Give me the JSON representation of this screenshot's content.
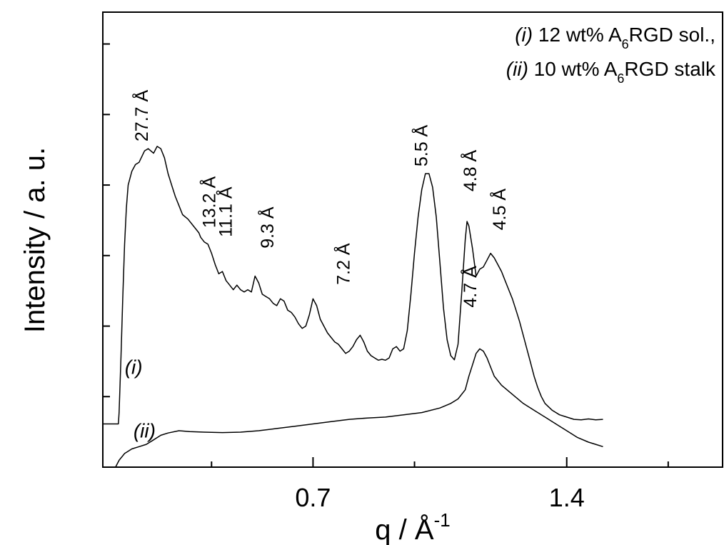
{
  "chart_data": {
    "type": "line",
    "xlabel": {
      "main": "q / Å",
      "sup": "-1"
    },
    "ylabel": "Intensity / a. u.",
    "xlim": [
      0.12,
      1.83
    ],
    "ylim": [
      0,
      1
    ],
    "x_ticks_major": [
      {
        "value": 0.7,
        "label": "0.7"
      },
      {
        "value": 1.4,
        "label": "1.4"
      }
    ],
    "x_ticks_minor": [
      0.42,
      0.98,
      1.68
    ],
    "y_tick_values": [
      0.0,
      0.155,
      0.31,
      0.465,
      0.62,
      0.775,
      0.93
    ],
    "y_tick_labels_shown": false,
    "grid": false,
    "legend": {
      "position": "top-right",
      "entries": [
        {
          "tag": "(i)",
          "pre": " 12 wt% A",
          "sub": "6",
          "post": "RGD sol.,"
        },
        {
          "tag": "(ii)",
          "pre": " 10 wt% A",
          "sub": "6",
          "post": "RGD stalk"
        }
      ]
    },
    "series": [
      {
        "tag": "(i)",
        "tag_at": {
          "x": 0.205,
          "y": 0.205
        },
        "points": [
          [
            0.12,
            0.095
          ],
          [
            0.163,
            0.095
          ],
          [
            0.165,
            0.12
          ],
          [
            0.17,
            0.24
          ],
          [
            0.175,
            0.37
          ],
          [
            0.18,
            0.49
          ],
          [
            0.185,
            0.57
          ],
          [
            0.19,
            0.62
          ],
          [
            0.2,
            0.65
          ],
          [
            0.21,
            0.665
          ],
          [
            0.22,
            0.67
          ],
          [
            0.235,
            0.695
          ],
          [
            0.245,
            0.7
          ],
          [
            0.26,
            0.69
          ],
          [
            0.27,
            0.705
          ],
          [
            0.28,
            0.7
          ],
          [
            0.29,
            0.68
          ],
          [
            0.3,
            0.645
          ],
          [
            0.31,
            0.62
          ],
          [
            0.32,
            0.595
          ],
          [
            0.33,
            0.575
          ],
          [
            0.34,
            0.555
          ],
          [
            0.355,
            0.545
          ],
          [
            0.37,
            0.53
          ],
          [
            0.385,
            0.515
          ],
          [
            0.39,
            0.505
          ],
          [
            0.4,
            0.495
          ],
          [
            0.41,
            0.49
          ],
          [
            0.42,
            0.47
          ],
          [
            0.43,
            0.445
          ],
          [
            0.44,
            0.425
          ],
          [
            0.45,
            0.43
          ],
          [
            0.46,
            0.41
          ],
          [
            0.47,
            0.4
          ],
          [
            0.48,
            0.39
          ],
          [
            0.49,
            0.4
          ],
          [
            0.5,
            0.39
          ],
          [
            0.51,
            0.385
          ],
          [
            0.52,
            0.39
          ],
          [
            0.53,
            0.385
          ],
          [
            0.54,
            0.42
          ],
          [
            0.55,
            0.405
          ],
          [
            0.56,
            0.38
          ],
          [
            0.57,
            0.375
          ],
          [
            0.58,
            0.37
          ],
          [
            0.59,
            0.36
          ],
          [
            0.6,
            0.355
          ],
          [
            0.61,
            0.37
          ],
          [
            0.62,
            0.365
          ],
          [
            0.63,
            0.345
          ],
          [
            0.64,
            0.34
          ],
          [
            0.65,
            0.33
          ],
          [
            0.66,
            0.315
          ],
          [
            0.67,
            0.305
          ],
          [
            0.68,
            0.31
          ],
          [
            0.69,
            0.335
          ],
          [
            0.7,
            0.37
          ],
          [
            0.71,
            0.355
          ],
          [
            0.72,
            0.325
          ],
          [
            0.73,
            0.31
          ],
          [
            0.74,
            0.295
          ],
          [
            0.75,
            0.285
          ],
          [
            0.76,
            0.275
          ],
          [
            0.77,
            0.27
          ],
          [
            0.78,
            0.26
          ],
          [
            0.79,
            0.25
          ],
          [
            0.8,
            0.255
          ],
          [
            0.81,
            0.265
          ],
          [
            0.82,
            0.28
          ],
          [
            0.83,
            0.29
          ],
          [
            0.84,
            0.275
          ],
          [
            0.85,
            0.255
          ],
          [
            0.86,
            0.245
          ],
          [
            0.87,
            0.24
          ],
          [
            0.88,
            0.235
          ],
          [
            0.89,
            0.237
          ],
          [
            0.9,
            0.235
          ],
          [
            0.91,
            0.24
          ],
          [
            0.92,
            0.26
          ],
          [
            0.93,
            0.265
          ],
          [
            0.94,
            0.255
          ],
          [
            0.95,
            0.26
          ],
          [
            0.96,
            0.3
          ],
          [
            0.97,
            0.38
          ],
          [
            0.98,
            0.47
          ],
          [
            0.99,
            0.55
          ],
          [
            1.0,
            0.61
          ],
          [
            1.01,
            0.645
          ],
          [
            1.02,
            0.645
          ],
          [
            1.03,
            0.615
          ],
          [
            1.04,
            0.55
          ],
          [
            1.05,
            0.45
          ],
          [
            1.06,
            0.35
          ],
          [
            1.07,
            0.28
          ],
          [
            1.08,
            0.245
          ],
          [
            1.09,
            0.236
          ],
          [
            1.1,
            0.27
          ],
          [
            1.11,
            0.38
          ],
          [
            1.12,
            0.5
          ],
          [
            1.125,
            0.54
          ],
          [
            1.13,
            0.53
          ],
          [
            1.14,
            0.48
          ],
          [
            1.15,
            0.42
          ],
          [
            1.16,
            0.435
          ],
          [
            1.17,
            0.44
          ],
          [
            1.18,
            0.455
          ],
          [
            1.19,
            0.47
          ],
          [
            1.2,
            0.46
          ],
          [
            1.21,
            0.445
          ],
          [
            1.22,
            0.43
          ],
          [
            1.23,
            0.41
          ],
          [
            1.24,
            0.39
          ],
          [
            1.25,
            0.37
          ],
          [
            1.26,
            0.345
          ],
          [
            1.27,
            0.32
          ],
          [
            1.28,
            0.29
          ],
          [
            1.29,
            0.26
          ],
          [
            1.3,
            0.23
          ],
          [
            1.31,
            0.2
          ],
          [
            1.32,
            0.175
          ],
          [
            1.33,
            0.155
          ],
          [
            1.34,
            0.14
          ],
          [
            1.36,
            0.125
          ],
          [
            1.38,
            0.115
          ],
          [
            1.4,
            0.11
          ],
          [
            1.42,
            0.105
          ],
          [
            1.44,
            0.104
          ],
          [
            1.46,
            0.106
          ],
          [
            1.48,
            0.104
          ],
          [
            1.5,
            0.105
          ]
        ]
      },
      {
        "tag": "(ii)",
        "tag_at": {
          "x": 0.235,
          "y": 0.065
        },
        "points": [
          [
            0.155,
            0.0
          ],
          [
            0.165,
            0.015
          ],
          [
            0.18,
            0.03
          ],
          [
            0.2,
            0.04
          ],
          [
            0.22,
            0.045
          ],
          [
            0.24,
            0.05
          ],
          [
            0.26,
            0.06
          ],
          [
            0.28,
            0.07
          ],
          [
            0.3,
            0.075
          ],
          [
            0.33,
            0.08
          ],
          [
            0.36,
            0.078
          ],
          [
            0.4,
            0.077
          ],
          [
            0.45,
            0.076
          ],
          [
            0.5,
            0.077
          ],
          [
            0.55,
            0.08
          ],
          [
            0.6,
            0.085
          ],
          [
            0.65,
            0.09
          ],
          [
            0.7,
            0.095
          ],
          [
            0.75,
            0.1
          ],
          [
            0.8,
            0.105
          ],
          [
            0.85,
            0.108
          ],
          [
            0.9,
            0.11
          ],
          [
            0.95,
            0.115
          ],
          [
            1.0,
            0.12
          ],
          [
            1.05,
            0.13
          ],
          [
            1.08,
            0.14
          ],
          [
            1.1,
            0.15
          ],
          [
            1.12,
            0.17
          ],
          [
            1.13,
            0.2
          ],
          [
            1.14,
            0.225
          ],
          [
            1.15,
            0.25
          ],
          [
            1.16,
            0.26
          ],
          [
            1.17,
            0.255
          ],
          [
            1.18,
            0.24
          ],
          [
            1.19,
            0.22
          ],
          [
            1.2,
            0.2
          ],
          [
            1.22,
            0.18
          ],
          [
            1.25,
            0.16
          ],
          [
            1.28,
            0.14
          ],
          [
            1.31,
            0.125
          ],
          [
            1.34,
            0.11
          ],
          [
            1.37,
            0.095
          ],
          [
            1.4,
            0.08
          ],
          [
            1.43,
            0.065
          ],
          [
            1.46,
            0.055
          ],
          [
            1.48,
            0.05
          ],
          [
            1.5,
            0.045
          ]
        ]
      }
    ],
    "annotations": [
      {
        "text": "27.7 Å",
        "x": 0.228,
        "y": 0.7
      },
      {
        "text": "13.2 Å",
        "x": 0.415,
        "y": 0.51
      },
      {
        "text": "11.1 Å",
        "x": 0.46,
        "y": 0.49
      },
      {
        "text": "9.3 Å",
        "x": 0.575,
        "y": 0.465
      },
      {
        "text": "7.2 Å",
        "x": 0.785,
        "y": 0.385
      },
      {
        "text": "5.5 Å",
        "x": 1.0,
        "y": 0.645
      },
      {
        "text": "4.8 Å",
        "x": 1.135,
        "y": 0.59
      },
      {
        "text": "4.5 Å",
        "x": 1.215,
        "y": 0.505
      },
      {
        "text": "4.7 Å",
        "x": 1.135,
        "y": 0.335
      }
    ]
  }
}
